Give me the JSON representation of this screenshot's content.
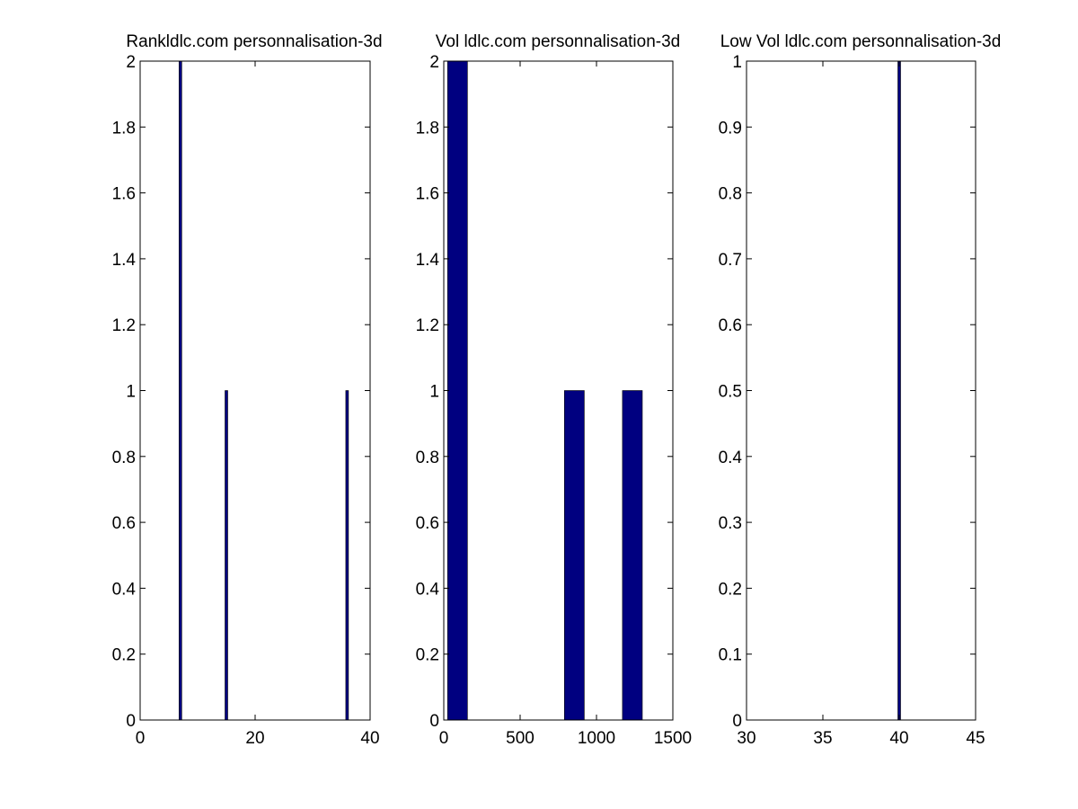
{
  "chart_data": [
    {
      "type": "bar",
      "title": "Rankldlc.com personnalisation-3d",
      "xlim": [
        0,
        40
      ],
      "ylim": [
        0,
        2
      ],
      "xticks": [
        "0",
        "20",
        "40"
      ],
      "yticks": [
        "0",
        "0.2",
        "0.4",
        "0.6",
        "0.8",
        "1",
        "1.2",
        "1.4",
        "1.6",
        "1.8",
        "2"
      ],
      "bar_width": 0.3,
      "x": [
        7,
        15,
        36
      ],
      "values": [
        2,
        1,
        1
      ],
      "color": "#000080"
    },
    {
      "type": "bar",
      "title": "Vol ldlc.com personnalisation-3d",
      "xlim": [
        0,
        1500
      ],
      "ylim": [
        0,
        2
      ],
      "xticks": [
        "0",
        "500",
        "1000",
        "1500"
      ],
      "yticks": [
        "0",
        "0.2",
        "0.4",
        "0.6",
        "0.8",
        "1",
        "1.2",
        "1.4",
        "1.6",
        "1.8",
        "2"
      ],
      "bar_width": 130,
      "x": [
        90,
        855,
        1235
      ],
      "values": [
        2,
        1,
        1
      ],
      "color": "#000080"
    },
    {
      "type": "bar",
      "title": "Low Vol ldlc.com personnalisation-3d",
      "xlim": [
        30,
        45
      ],
      "ylim": [
        0,
        1
      ],
      "xticks": [
        "30",
        "35",
        "40",
        "45"
      ],
      "yticks": [
        "0",
        "0.1",
        "0.2",
        "0.3",
        "0.4",
        "0.5",
        "0.6",
        "0.7",
        "0.8",
        "0.9",
        "1"
      ],
      "bar_width": 0.08,
      "x": [
        40
      ],
      "values": [
        1
      ],
      "color": "#000080"
    }
  ]
}
